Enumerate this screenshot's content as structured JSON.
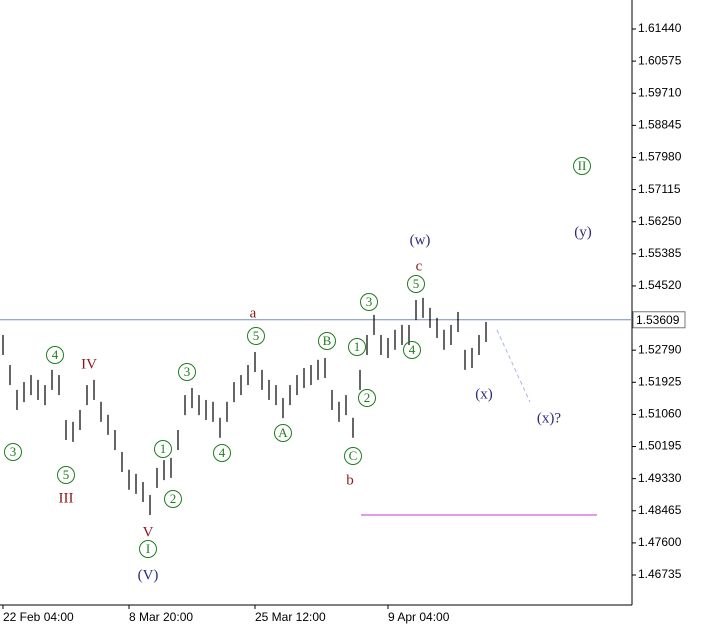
{
  "chart_data": {
    "type": "hilo",
    "color": "#000000",
    "categories": [
      "22 Feb 04:00",
      null,
      null,
      null,
      null,
      null,
      null,
      null,
      null,
      null,
      null,
      null,
      null,
      null,
      null,
      null,
      null,
      null,
      "8 Mar 20:00",
      null,
      null,
      null,
      null,
      null,
      null,
      null,
      null,
      null,
      null,
      null,
      null,
      null,
      null,
      null,
      null,
      null,
      "25 Mar 12:00",
      null,
      null,
      null,
      null,
      null,
      null,
      null,
      null,
      null,
      null,
      null,
      null,
      null,
      null,
      null,
      null,
      null,
      null,
      "9 Apr 04:00",
      null,
      null,
      null,
      null,
      null,
      null,
      null,
      null,
      null,
      null,
      null,
      null,
      null,
      null
    ],
    "high": [
      1.532,
      1.5239,
      1.5172,
      1.5193,
      1.5212,
      1.5199,
      1.5185,
      1.5226,
      1.5212,
      1.5091,
      1.5086,
      1.5118,
      1.5185,
      1.5199,
      1.514,
      1.5105,
      1.5064,
      1.5005,
      1.4957,
      1.4946,
      1.4924,
      1.4889,
      1.4962,
      1.4983,
      1.4989,
      1.5064,
      1.5158,
      1.5177,
      1.5158,
      1.5145,
      1.514,
      1.5097,
      1.514,
      1.5193,
      1.5212,
      1.5239,
      1.5274,
      1.5226,
      1.5199,
      1.5185,
      1.515,
      1.5185,
      1.5212,
      1.5231,
      1.5239,
      1.5253,
      1.5258,
      1.5172,
      1.514,
      1.5158,
      1.5097,
      1.5226,
      1.532,
      1.5374,
      1.532,
      1.5312,
      1.5334,
      1.5347,
      1.5347,
      1.5414,
      1.542,
      1.5393,
      1.5366,
      1.5334,
      1.5347,
      1.5382,
      1.528,
      1.5285,
      1.532,
      1.5355
    ],
    "low": [
      1.5266,
      1.5185,
      1.5118,
      1.5139,
      1.5158,
      1.5145,
      1.5131,
      1.5172,
      1.5158,
      1.5037,
      1.5032,
      1.5064,
      1.5131,
      1.5145,
      1.5086,
      1.5051,
      1.501,
      1.4951,
      1.4903,
      1.4892,
      1.487,
      1.4835,
      1.4908,
      1.4929,
      1.4935,
      1.501,
      1.5104,
      1.5123,
      1.5104,
      1.5091,
      1.5086,
      1.5043,
      1.5086,
      1.5139,
      1.5158,
      1.5185,
      1.522,
      1.5172,
      1.5145,
      1.5131,
      1.5096,
      1.5131,
      1.5158,
      1.5177,
      1.5185,
      1.5199,
      1.5204,
      1.5118,
      1.5086,
      1.5104,
      1.5043,
      1.5172,
      1.5266,
      1.532,
      1.5266,
      1.5258,
      1.528,
      1.5293,
      1.5293,
      1.536,
      1.5366,
      1.5339,
      1.5312,
      1.528,
      1.5293,
      1.5328,
      1.5226,
      1.5231,
      1.5266,
      1.5301
    ],
    "ylim": [
      1.45927,
      1.62221
    ],
    "yticks": [
      1.46735,
      {
        "value": 1.476,
        "label": "1.47600"
      },
      1.48465,
      {
        "value": 1.4933,
        "label": "1.49330"
      },
      1.50195,
      {
        "value": 1.5106,
        "label": "1.51060"
      },
      1.51925,
      {
        "value": 1.5279,
        "label": "1.52790"
      },
      {
        "value": 1.5452,
        "label": "1.54520"
      },
      1.55385,
      {
        "value": 1.5625,
        "label": "1.56250"
      },
      1.57115,
      {
        "value": 1.5798,
        "label": "1.57980"
      },
      1.58845,
      {
        "value": 1.5971,
        "label": "1.59710"
      },
      1.60575,
      {
        "value": 1.6144,
        "label": "1.61440"
      }
    ],
    "hlines": [
      {
        "value": 1.53609,
        "color": "#6f8fbf"
      },
      {
        "value": 1.48351,
        "color": "#cc33cc"
      }
    ],
    "annotations": [
      {
        "text": "3",
        "color": "#1e7d1e",
        "circled": true
      },
      {
        "text": "4",
        "color": "#1e7d1e",
        "circled": true
      },
      {
        "text": "5",
        "color": "#1e7d1e",
        "circled": true
      },
      {
        "text": "1",
        "color": "#1e7d1e",
        "circled": true
      },
      {
        "text": "2",
        "color": "#1e7d1e",
        "circled": true
      },
      {
        "text": "3",
        "color": "#1e7d1e",
        "circled": true
      },
      {
        "text": "4",
        "color": "#1e7d1e",
        "circled": true
      },
      {
        "text": "5",
        "color": "#1e7d1e",
        "circled": true
      },
      {
        "text": "A",
        "color": "#1e7d1e",
        "circled": true
      },
      {
        "text": "B",
        "color": "#1e7d1e",
        "circled": true
      },
      {
        "text": "C",
        "color": "#1e7d1e",
        "circled": true
      },
      {
        "text": "1",
        "color": "#1e7d1e",
        "circled": true
      },
      {
        "text": "2",
        "color": "#1e7d1e",
        "circled": true
      },
      {
        "text": "3",
        "color": "#1e7d1e",
        "circled": true
      },
      {
        "text": "4",
        "color": "#1e7d1e",
        "circled": true
      },
      {
        "text": "5",
        "color": "#1e7d1e",
        "circled": true
      },
      {
        "text": "I",
        "color": "#1e7d1e",
        "circled": true
      },
      {
        "text": "II",
        "color": "#1e7d1e",
        "circled": true
      },
      {
        "text": "IV",
        "color": "#8b1a1a",
        "circled": false
      },
      {
        "text": "III",
        "color": "#8b1a1a",
        "circled": false
      },
      {
        "text": "V",
        "color": "#8b1a1a",
        "circled": false
      },
      {
        "text": "a",
        "color": "#8b1a1a",
        "circled": false
      },
      {
        "text": "b",
        "color": "#8b1a1a",
        "circled": false
      },
      {
        "text": "c",
        "color": "#8b1a1a",
        "circled": false
      },
      {
        "text": "(V)",
        "color": "#2b2b7d",
        "circled": false
      },
      {
        "text": "(w)",
        "color": "#2b2b7d",
        "circled": false
      },
      {
        "text": "(x)",
        "color": "#2b2b7d",
        "circled": false
      },
      {
        "text": "(x)?",
        "color": "#2b2b7d",
        "circled": false
      },
      {
        "text": "(y)",
        "color": "#2b2b7d",
        "circled": false
      }
    ]
  }
}
